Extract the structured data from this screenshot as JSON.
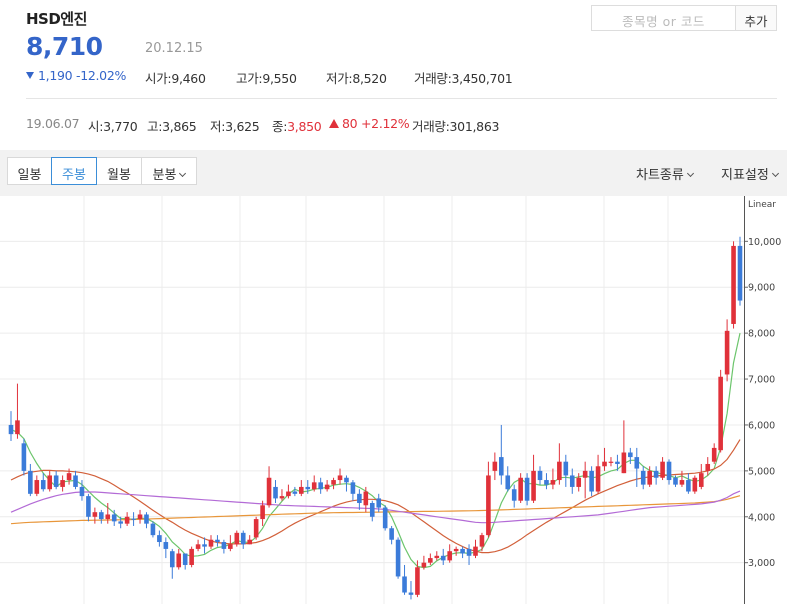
{
  "header": {
    "stock_name": "HSD엔진",
    "price": "8,710",
    "date": "20.12.15",
    "change_amount": "1,190",
    "change_percent": "-12.02%",
    "open_label": "시가",
    "open_value": "9,460",
    "high_label": "고가",
    "high_value": "9,550",
    "low_label": "저가",
    "low_value": "8,520",
    "volume_label": "거래량",
    "volume_value": "3,450,701",
    "search_placeholder": "종목명 or 코드",
    "add_label": "추가"
  },
  "week": {
    "date": "19.06.07",
    "open_label": "시",
    "open_value": "3,770",
    "high_label": "고",
    "high_value": "3,865",
    "low_label": "저",
    "low_value": "3,625",
    "close_label": "종",
    "close_value": "3,850",
    "change_value": "80",
    "change_percent": "+2.12%",
    "volume_label": "거래량",
    "volume_value": "301,863"
  },
  "toolbar": {
    "periods": [
      "일봉",
      "주봉",
      "월봉",
      "분봉"
    ],
    "active_period": "주봉",
    "chart_type_label": "차트종류",
    "indicator_label": "지표설정"
  },
  "colors": {
    "up": "#e0313a",
    "down": "#3b7bd9",
    "ma5": "#6cc56c",
    "ma20": "#d2603a",
    "ma60": "#e8963a",
    "ma120": "#b36bd6",
    "accent": "#3465c9"
  },
  "chart_data": {
    "type": "candlestick",
    "scale_label": "Linear",
    "y_ticks": [
      3000,
      4000,
      5000,
      6000,
      7000,
      8000,
      9000,
      10000
    ],
    "y_tick_labels": [
      "3,000",
      "4,000",
      "5,000",
      "6,000",
      "7,000",
      "8,000",
      "9,000",
      "10,000"
    ],
    "ylim": [
      2100,
      10900
    ],
    "grid": true,
    "candles": [
      [
        6000,
        5800,
        6300,
        5650
      ],
      [
        5800,
        6100,
        6900,
        5700
      ],
      [
        5600,
        5000,
        5700,
        4900
      ],
      [
        5000,
        4500,
        5150,
        4450
      ],
      [
        4500,
        4800,
        4900,
        4450
      ],
      [
        4800,
        4600,
        4950,
        4550
      ],
      [
        4600,
        4900,
        5000,
        4550
      ],
      [
        4900,
        4650,
        5000,
        4600
      ],
      [
        4650,
        4800,
        4900,
        4550
      ],
      [
        4800,
        4950,
        5050,
        4700
      ],
      [
        4900,
        4650,
        5000,
        4600
      ],
      [
        4650,
        4450,
        4800,
        4350
      ],
      [
        4450,
        4000,
        4500,
        3900
      ],
      [
        4000,
        4100,
        4200,
        3850
      ],
      [
        4100,
        3950,
        4150,
        3850
      ],
      [
        3950,
        4050,
        4300,
        3850
      ],
      [
        4050,
        3900,
        4150,
        3800
      ],
      [
        3900,
        3850,
        4000,
        3750
      ],
      [
        3850,
        4000,
        4100,
        3800
      ],
      [
        3960,
        3950,
        4100,
        3800
      ],
      [
        3950,
        4050,
        4150,
        3850
      ],
      [
        4050,
        3850,
        4100,
        3750
      ],
      [
        3850,
        3600,
        3900,
        3550
      ],
      [
        3600,
        3450,
        3700,
        3350
      ],
      [
        3450,
        3300,
        3550,
        3100
      ],
      [
        3250,
        2900,
        3300,
        2650
      ],
      [
        2900,
        3200,
        3300,
        2850
      ],
      [
        3200,
        2950,
        3200,
        2850
      ],
      [
        2950,
        3300,
        3350,
        2900
      ],
      [
        3300,
        3400,
        3500,
        3250
      ],
      [
        3400,
        3350,
        3550,
        3200
      ],
      [
        3350,
        3500,
        3600,
        3300
      ],
      [
        3500,
        3450,
        3600,
        3350
      ],
      [
        3450,
        3300,
        3500,
        3200
      ],
      [
        3300,
        3400,
        3600,
        3250
      ],
      [
        3400,
        3650,
        3700,
        3350
      ],
      [
        3650,
        3400,
        3700,
        3300
      ],
      [
        3400,
        3500,
        3600,
        3400
      ],
      [
        3550,
        3950,
        4000,
        3500
      ],
      [
        3950,
        4250,
        4350,
        3800
      ],
      [
        4250,
        4850,
        5100,
        4200
      ],
      [
        4650,
        4400,
        4800,
        4300
      ],
      [
        4400,
        4450,
        4600,
        4350
      ],
      [
        4450,
        4550,
        4700,
        4400
      ],
      [
        4550,
        4500,
        4650,
        4450
      ],
      [
        4500,
        4650,
        4800,
        4450
      ],
      [
        4650,
        4600,
        4800,
        4500
      ],
      [
        4600,
        4750,
        4900,
        4550
      ],
      [
        4750,
        4600,
        4850,
        4500
      ],
      [
        4600,
        4700,
        4800,
        4550
      ],
      [
        4700,
        4800,
        4850,
        4600
      ],
      [
        4800,
        4900,
        5050,
        4700
      ],
      [
        4850,
        4750,
        4900,
        4550
      ],
      [
        4750,
        4500,
        4800,
        4350
      ],
      [
        4500,
        4300,
        4600,
        4150
      ],
      [
        4250,
        4550,
        4650,
        4100
      ],
      [
        4300,
        4000,
        4350,
        3900
      ],
      [
        4400,
        4200,
        4500,
        4100
      ],
      [
        4200,
        3750,
        4250,
        3700
      ],
      [
        3750,
        3500,
        3800,
        3400
      ],
      [
        3500,
        2700,
        3550,
        2650
      ],
      [
        2700,
        2350,
        2950,
        2300
      ],
      [
        2350,
        2300,
        2600,
        2200
      ],
      [
        2300,
        2900,
        3050,
        2250
      ],
      [
        2900,
        3000,
        3150,
        2850
      ],
      [
        3000,
        3100,
        3200,
        2950
      ],
      [
        3100,
        3150,
        3250,
        3050
      ],
      [
        3150,
        3050,
        3300,
        2950
      ],
      [
        3050,
        3250,
        3400,
        3000
      ],
      [
        3250,
        3300,
        3350,
        3150
      ],
      [
        3300,
        3200,
        3350,
        3100
      ],
      [
        3300,
        3150,
        3400,
        2950
      ],
      [
        3150,
        3350,
        3500,
        3100
      ],
      [
        3350,
        3600,
        3650,
        3250
      ],
      [
        3600,
        4900,
        5200,
        3550
      ],
      [
        5000,
        5200,
        5400,
        4800
      ],
      [
        5300,
        4900,
        6000,
        4700
      ],
      [
        4900,
        4600,
        5100,
        4550
      ],
      [
        4600,
        4350,
        4700,
        4200
      ],
      [
        4350,
        4850,
        4950,
        4300
      ],
      [
        4850,
        4350,
        4950,
        4250
      ],
      [
        4350,
        5000,
        5350,
        4300
      ],
      [
        5000,
        4800,
        5100,
        4700
      ],
      [
        4800,
        4700,
        4950,
        4600
      ],
      [
        4700,
        4800,
        5050,
        4600
      ],
      [
        4800,
        5200,
        5600,
        4700
      ],
      [
        5200,
        4900,
        5350,
        4650
      ],
      [
        4900,
        4650,
        5050,
        4500
      ],
      [
        4650,
        4850,
        4950,
        4550
      ],
      [
        4850,
        5000,
        5200,
        4400
      ],
      [
        5000,
        4550,
        5100,
        4450
      ],
      [
        4550,
        5100,
        5350,
        4500
      ],
      [
        5100,
        5200,
        5500,
        5000
      ],
      [
        5200,
        5200,
        5300,
        5100
      ],
      [
        5200,
        5150,
        5350,
        5000
      ],
      [
        4950,
        5400,
        6100,
        4950
      ],
      [
        5400,
        5300,
        5500,
        5150
      ],
      [
        5300,
        5050,
        5500,
        4650
      ],
      [
        5000,
        4700,
        5100,
        4600
      ],
      [
        4700,
        5000,
        5100,
        4650
      ],
      [
        5000,
        4850,
        5100,
        4700
      ],
      [
        4850,
        5200,
        5300,
        4800
      ],
      [
        5200,
        4800,
        5250,
        4700
      ],
      [
        4850,
        4700,
        4900,
        4650
      ],
      [
        4700,
        4800,
        5000,
        4650
      ],
      [
        4800,
        4550,
        4950,
        4500
      ],
      [
        4550,
        4850,
        4900,
        4500
      ],
      [
        4650,
        4950,
        5150,
        4600
      ],
      [
        5000,
        5150,
        5300,
        4900
      ],
      [
        5200,
        5500,
        5600,
        5150
      ],
      [
        5450,
        7050,
        7200,
        5400
      ],
      [
        7100,
        8050,
        8300,
        6950
      ],
      [
        8200,
        9900,
        10000,
        8100
      ],
      [
        9900,
        8710,
        10100,
        8600
      ]
    ],
    "series": [
      {
        "name": "ma5",
        "values": [
          5900,
          5840,
          5700,
          5400,
          5160,
          4950,
          4790,
          4650,
          4760,
          4780,
          4790,
          4700,
          4560,
          4420,
          4300,
          4200,
          4080,
          3960,
          3960,
          3940,
          3970,
          3960,
          3890,
          3790,
          3640,
          3450,
          3330,
          3180,
          3140,
          3150,
          3180,
          3270,
          3330,
          3350,
          3400,
          3480,
          3450,
          3440,
          3560,
          3750,
          4010,
          4170,
          4340,
          4490,
          4600,
          4540,
          4560,
          4600,
          4620,
          4640,
          4690,
          4710,
          4720,
          4700,
          4640,
          4560,
          4460,
          4320,
          4230,
          4000,
          3680,
          3340,
          3070,
          2920,
          2890,
          2920,
          3040,
          3120,
          3180,
          3210,
          3220,
          3200,
          3230,
          3290,
          3540,
          3910,
          4300,
          4570,
          4750,
          4830,
          4720,
          4720,
          4690,
          4690,
          4740,
          4850,
          4860,
          4840,
          4870,
          4900,
          4850,
          4870,
          4940,
          5000,
          5030,
          5160,
          5230,
          5230,
          5100,
          5010,
          4970,
          4920,
          4900,
          4850,
          4890,
          4820,
          4770,
          4800,
          4900,
          5050,
          5500,
          6250,
          7350,
          8000
        ]
      },
      {
        "name": "ma20",
        "values": [
          4800,
          4870,
          4930,
          4970,
          4990,
          5010,
          5010,
          5000,
          5000,
          4990,
          4980,
          4960,
          4930,
          4890,
          4830,
          4770,
          4690,
          4600,
          4520,
          4430,
          4340,
          4240,
          4140,
          4050,
          3960,
          3880,
          3790,
          3710,
          3640,
          3580,
          3520,
          3470,
          3440,
          3420,
          3410,
          3410,
          3410,
          3420,
          3440,
          3480,
          3540,
          3610,
          3690,
          3780,
          3860,
          3930,
          3990,
          4050,
          4110,
          4170,
          4230,
          4280,
          4320,
          4350,
          4370,
          4380,
          4380,
          4370,
          4350,
          4310,
          4260,
          4180,
          4090,
          3990,
          3890,
          3790,
          3690,
          3590,
          3500,
          3420,
          3350,
          3290,
          3250,
          3220,
          3220,
          3240,
          3280,
          3340,
          3420,
          3510,
          3610,
          3700,
          3790,
          3880,
          3960,
          4040,
          4120,
          4200,
          4280,
          4360,
          4430,
          4500,
          4560,
          4620,
          4680,
          4730,
          4780,
          4820,
          4850,
          4870,
          4890,
          4900,
          4910,
          4920,
          4930,
          4940,
          4950,
          4970,
          5000,
          5040,
          5120,
          5250,
          5450,
          5680
        ]
      },
      {
        "name": "ma60",
        "values": [
          3850,
          3860,
          3870,
          3880,
          3885,
          3890,
          3895,
          3900,
          3905,
          3910,
          3915,
          3920,
          3922,
          3925,
          3928,
          3930,
          3932,
          3935,
          3938,
          3940,
          3945,
          3950,
          3955,
          3960,
          3965,
          3970,
          3975,
          3980,
          3985,
          3990,
          3995,
          4000,
          4005,
          4010,
          4015,
          4020,
          4025,
          4030,
          4035,
          4040,
          4045,
          4050,
          4055,
          4060,
          4065,
          4070,
          4075,
          4080,
          4082,
          4085,
          4088,
          4090,
          4092,
          4094,
          4096,
          4098,
          4100,
          4102,
          4104,
          4106,
          4108,
          4110,
          4112,
          4114,
          4116,
          4118,
          4120,
          4122,
          4124,
          4126,
          4128,
          4130,
          4133,
          4136,
          4140,
          4145,
          4150,
          4155,
          4160,
          4165,
          4170,
          4175,
          4180,
          4185,
          4190,
          4195,
          4200,
          4205,
          4210,
          4215,
          4220,
          4225,
          4230,
          4235,
          4240,
          4245,
          4250,
          4255,
          4260,
          4265,
          4270,
          4275,
          4280,
          4285,
          4290,
          4295,
          4300,
          4310,
          4320,
          4330,
          4350,
          4380,
          4420,
          4460
        ]
      },
      {
        "name": "ma120",
        "values": [
          4100,
          4160,
          4220,
          4280,
          4330,
          4380,
          4420,
          4460,
          4490,
          4510,
          4530,
          4540,
          4540,
          4540,
          4530,
          4520,
          4510,
          4500,
          4490,
          4480,
          4470,
          4460,
          4450,
          4440,
          4430,
          4420,
          4410,
          4400,
          4390,
          4380,
          4370,
          4360,
          4350,
          4340,
          4330,
          4320,
          4310,
          4300,
          4290,
          4280,
          4270,
          4260,
          4250,
          4245,
          4240,
          4235,
          4230,
          4225,
          4220,
          4215,
          4210,
          4205,
          4200,
          4195,
          4190,
          4185,
          4180,
          4170,
          4160,
          4140,
          4120,
          4100,
          4080,
          4060,
          4040,
          4020,
          4000,
          3980,
          3960,
          3940,
          3920,
          3900,
          3880,
          3870,
          3870,
          3880,
          3890,
          3900,
          3910,
          3920,
          3930,
          3940,
          3950,
          3960,
          3970,
          3980,
          3990,
          4000,
          4010,
          4020,
          4030,
          4040,
          4060,
          4080,
          4100,
          4120,
          4140,
          4160,
          4180,
          4200,
          4210,
          4220,
          4230,
          4240,
          4250,
          4260,
          4270,
          4280,
          4300,
          4320,
          4360,
          4420,
          4500,
          4560
        ]
      }
    ]
  }
}
